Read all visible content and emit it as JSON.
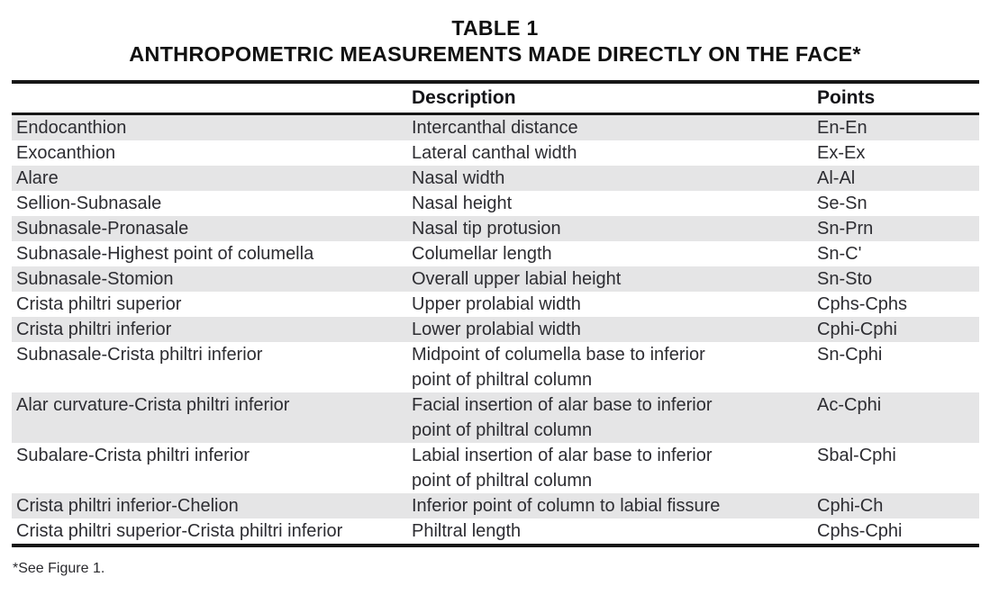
{
  "title": {
    "line1": "TABLE 1",
    "line2": "ANTHROPOMETRIC MEASUREMENTS MADE DIRECTLY ON THE FACE*"
  },
  "table": {
    "columns": [
      "",
      "Description",
      "Points"
    ],
    "rows": [
      {
        "measurement": "Endocanthion",
        "description": "Intercanthal distance",
        "points": "En-En"
      },
      {
        "measurement": "Exocanthion",
        "description": "Lateral canthal width",
        "points": "Ex-Ex"
      },
      {
        "measurement": "Alare",
        "description": "Nasal width",
        "points": "Al-Al"
      },
      {
        "measurement": "Sellion-Subnasale",
        "description": "Nasal height",
        "points": "Se-Sn"
      },
      {
        "measurement": "Subnasale-Pronasale",
        "description": "Nasal tip protusion",
        "points": "Sn-Prn"
      },
      {
        "measurement": "Subnasale-Highest point of columella",
        "description": "Columellar length",
        "points": "Sn-C'"
      },
      {
        "measurement": "Subnasale-Stomion",
        "description": "Overall upper labial height",
        "points": "Sn-Sto"
      },
      {
        "measurement": "Crista philtri superior",
        "description": "Upper prolabial width",
        "points": "Cphs-Cphs"
      },
      {
        "measurement": "Crista philtri inferior",
        "description": "Lower prolabial width",
        "points": "Cphi-Cphi"
      },
      {
        "measurement": "Subnasale-Crista philtri inferior",
        "description": "Midpoint of columella base to inferior\npoint of philtral column",
        "points": "Sn-Cphi"
      },
      {
        "measurement": "Alar curvature-Crista philtri inferior",
        "description": "Facial insertion of alar base to inferior\npoint of philtral column",
        "points": "Ac-Cphi"
      },
      {
        "measurement": "Subalare-Crista philtri inferior",
        "description": "Labial insertion of alar base to inferior\npoint of philtral column",
        "points": "Sbal-Cphi"
      },
      {
        "measurement": "Crista philtri inferior-Chelion",
        "description": "Inferior point of column to labial fissure",
        "points": "Cphi-Ch"
      },
      {
        "measurement": "Crista philtri superior-Crista philtri inferior",
        "description": "Philtral length",
        "points": "Cphs-Cphi"
      }
    ]
  },
  "footnote": "*See Figure 1.",
  "colors": {
    "stripe": "#e5e5e6",
    "text": "#2d2d32",
    "rule": "#161616",
    "background": "#ffffff"
  }
}
